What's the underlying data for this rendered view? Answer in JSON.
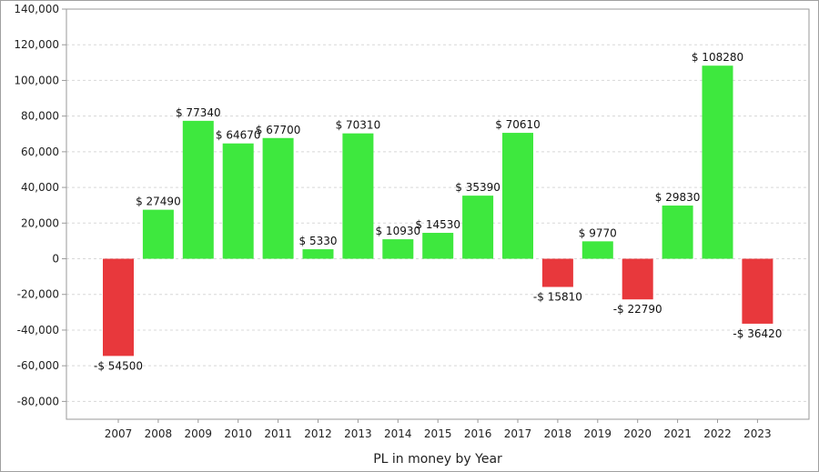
{
  "chart_data": {
    "type": "bar",
    "categories": [
      "2007",
      "2008",
      "2009",
      "2010",
      "2011",
      "2012",
      "2013",
      "2014",
      "2015",
      "2016",
      "2017",
      "2018",
      "2019",
      "2020",
      "2021",
      "2022",
      "2023"
    ],
    "values": [
      -54500,
      27490,
      77340,
      64670,
      67700,
      5330,
      70310,
      10930,
      14530,
      35390,
      70610,
      -15810,
      9770,
      -22790,
      29830,
      108280,
      -36420
    ],
    "data_labels": [
      "-$ 54500",
      "$ 27490",
      "$ 77340",
      "$ 64670",
      "$ 67700",
      "$ 5330",
      "$ 70310",
      "$ 10930",
      "$ 14530",
      "$ 35390",
      "$ 70610",
      "-$ 15810",
      "$ 9770",
      "-$ 22790",
      "$ 29830",
      "$ 108280",
      "-$ 36420"
    ],
    "title": "",
    "xlabel": "PL in money by Year",
    "ylabel": "",
    "ylim": [
      -90000,
      140000
    ],
    "yticks": [
      -80000,
      -60000,
      -40000,
      -20000,
      0,
      20000,
      40000,
      60000,
      80000,
      100000,
      120000,
      140000
    ],
    "ytick_labels": [
      "-80,000",
      "-60,000",
      "-40,000",
      "-20,000",
      "0",
      "20,000",
      "40,000",
      "60,000",
      "80,000",
      "100,000",
      "120,000",
      "140,000"
    ],
    "grid": true,
    "colors": {
      "positive": "#3ee83e",
      "negative": "#e8383c",
      "grid": "#d8d8d8",
      "axis": "#9a9a9a"
    }
  }
}
